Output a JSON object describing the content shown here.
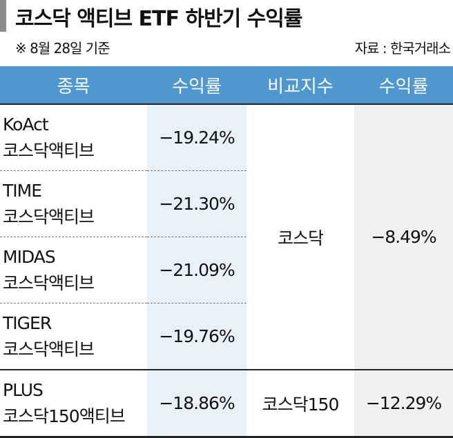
{
  "header": {
    "title": "코스닥 액티브 ETF 하반기 수익률",
    "note": "※ 8월 28일 기준",
    "source": "자료 : 한국거래소"
  },
  "table": {
    "columns": [
      "종목",
      "수익률",
      "비교지수",
      "수익률"
    ],
    "rows": [
      {
        "name": [
          "KoAct",
          "코스닥액티브"
        ],
        "return": "−19.24%"
      },
      {
        "name": [
          "TIME",
          "코스닥액티브"
        ],
        "return": "−21.30%"
      },
      {
        "name": [
          "MIDAS",
          "코스닥액티브"
        ],
        "return": "−21.09%"
      },
      {
        "name": [
          "TIGER",
          "코스닥액티브"
        ],
        "return": "−19.76%"
      },
      {
        "name": [
          "PLUS",
          "코스닥150액티브"
        ],
        "return": "−18.86%"
      }
    ],
    "groups": [
      {
        "index": "코스닥",
        "return": "−8.49%"
      },
      {
        "index": "코스닥150",
        "return": "−12.29%"
      }
    ]
  }
}
